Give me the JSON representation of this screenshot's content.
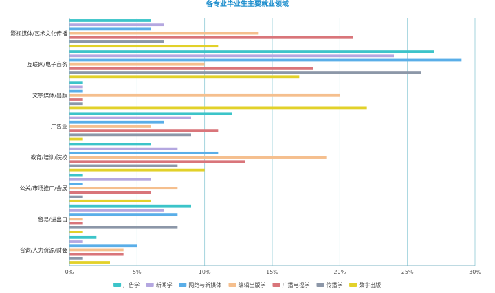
{
  "chart_data": {
    "type": "bar",
    "orientation": "horizontal",
    "title": "各专业毕业生主要就业领域",
    "categories": [
      "影视媒体/艺术文化传播",
      "互联网/电子商务",
      "文字媒体/出版",
      "广告业",
      "教育/培训/院校",
      "公关/市场推广/会展",
      "贸易/进出口",
      "咨询/人力资源/财会"
    ],
    "xlim": [
      0,
      30
    ],
    "x_ticks": [
      "0%",
      "5%",
      "10%",
      "15%",
      "20%",
      "25%",
      "30%"
    ],
    "x_tick_values": [
      0,
      5,
      10,
      15,
      20,
      25,
      30
    ],
    "unit": "%",
    "grid": true,
    "legend_position": "bottom",
    "series": [
      {
        "name": "广告学",
        "color": "#3cc4c9",
        "values": [
          6,
          27,
          1,
          12,
          6,
          1,
          9,
          2
        ]
      },
      {
        "name": "新闻学",
        "color": "#b4a7e0",
        "values": [
          7,
          24,
          1,
          9,
          8,
          6,
          7,
          1
        ]
      },
      {
        "name": "网络与新媒体",
        "color": "#5aaee8",
        "values": [
          6,
          29,
          1,
          7,
          11,
          1,
          8,
          5
        ]
      },
      {
        "name": "编辑出版学",
        "color": "#f5bf8e",
        "values": [
          14,
          10,
          20,
          6,
          19,
          8,
          1,
          4
        ]
      },
      {
        "name": "广播电视学",
        "color": "#d9757a",
        "values": [
          21,
          18,
          1,
          11,
          13,
          6,
          1,
          4
        ]
      },
      {
        "name": "传播学",
        "color": "#8c97a8",
        "values": [
          7,
          26,
          1,
          9,
          8,
          1,
          8,
          1
        ]
      },
      {
        "name": "数字出版",
        "color": "#e2d12a",
        "values": [
          11,
          17,
          22,
          1,
          10,
          6,
          1,
          3
        ]
      }
    ]
  }
}
